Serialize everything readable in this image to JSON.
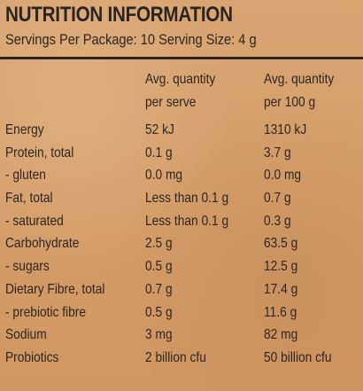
{
  "title": "NUTRITION INFORMATION",
  "servings_line": "Servings Per Package: 10  Serving Size: 4 g",
  "headers": {
    "per_serve": [
      "Avg. quantity",
      "per serve"
    ],
    "per_100g": [
      "Avg. quantity",
      "per 100 g"
    ]
  },
  "rows": [
    {
      "name": "Energy",
      "per_serve": "52 kJ",
      "per_100g": "1310 kJ"
    },
    {
      "name": "Protein, total",
      "per_serve": "0.1 g",
      "per_100g": "3.7 g"
    },
    {
      "name": " - gluten",
      "per_serve": "0.0 mg",
      "per_100g": "0.0 mg"
    },
    {
      "name": "Fat, total",
      "per_serve": "Less than 0.1 g",
      "per_100g": "0.7 g"
    },
    {
      "name": " - saturated",
      "per_serve": "Less than 0.1 g",
      "per_100g": "0.3 g"
    },
    {
      "name": "Carbohydrate",
      "per_serve": "2.5 g",
      "per_100g": "63.5 g"
    },
    {
      "name": " - sugars",
      "per_serve": "0.5 g",
      "per_100g": "12.5 g"
    },
    {
      "name": "Dietary Fibre, total",
      "per_serve": "0.7 g",
      "per_100g": "17.4 g"
    },
    {
      "name": " - prebiotic fibre",
      "per_serve": "0.5 g",
      "per_100g": "11.6 g"
    },
    {
      "name": "Sodium",
      "per_serve": "3 mg",
      "per_100g": "82 mg"
    },
    {
      "name": "Probiotics",
      "per_serve": "2 billion cfu",
      "per_100g": "50 billion cfu"
    }
  ],
  "colors": {
    "background": "#d7a16e",
    "text": "#2d2520"
  }
}
